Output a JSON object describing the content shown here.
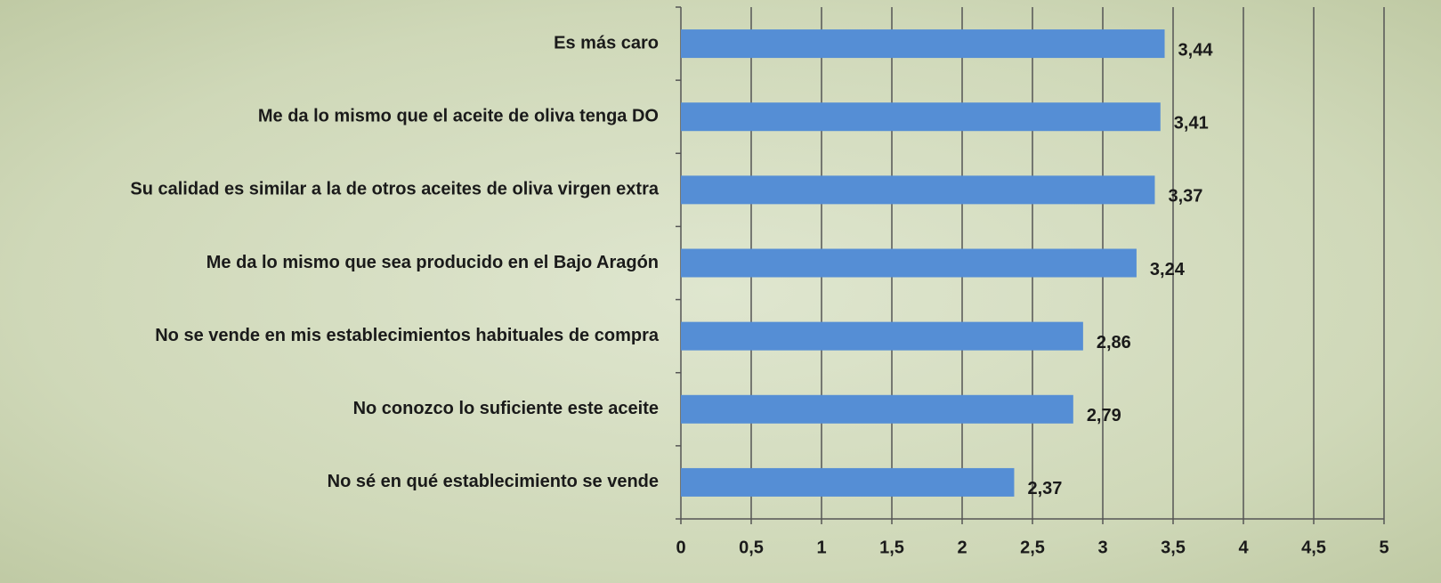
{
  "chart_data": {
    "type": "bar",
    "orientation": "horizontal",
    "categories": [
      "Es más caro",
      "Me da lo mismo que el aceite de oliva tenga DO",
      "Su calidad es similar a la de otros aceites de oliva virgen extra",
      "Me da lo mismo que sea producido en el Bajo Aragón",
      "No se vende en mis establecimientos habituales de compra",
      "No conozco lo suficiente este aceite",
      "No sé en qué establecimiento se vende"
    ],
    "values": [
      3.44,
      3.41,
      3.37,
      3.24,
      2.86,
      2.79,
      2.37
    ],
    "value_labels": [
      "3,44",
      "3,41",
      "3,37",
      "3,24",
      "2,86",
      "2,79",
      "2,37"
    ],
    "color": "#558ed5",
    "xlim": [
      0,
      5
    ],
    "xticks": [
      0,
      {
        "value": 0.5,
        "label": "0,5"
      },
      1,
      {
        "value": 1.5,
        "label": "1,5"
      },
      2,
      {
        "value": 2.5,
        "label": "2,5"
      },
      3,
      {
        "value": 3.5,
        "label": "3,5"
      },
      4,
      {
        "value": 4.5,
        "label": "4,5"
      },
      5
    ],
    "grid": true
  }
}
